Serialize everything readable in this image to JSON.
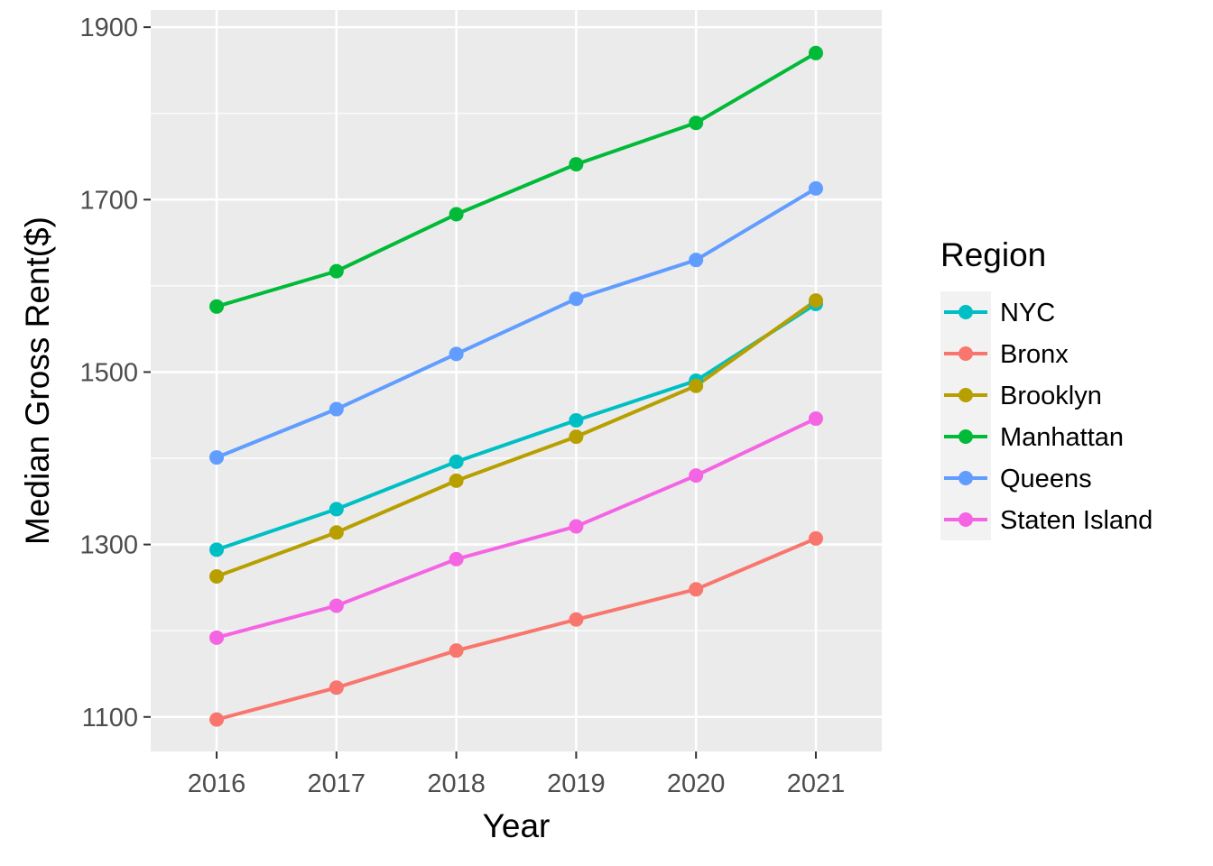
{
  "chart_data": {
    "type": "line",
    "title": "",
    "xlabel": "Year",
    "ylabel": "Median Gross Rent($)",
    "x": [
      2016,
      2017,
      2018,
      2019,
      2020,
      2021
    ],
    "x_tick_labels": [
      "2016",
      "2017",
      "2018",
      "2019",
      "2020",
      "2021"
    ],
    "y_tick_labels": [
      "1100",
      "1300",
      "1500",
      "1700",
      "1900"
    ],
    "y_ticks": [
      1100,
      1300,
      1500,
      1700,
      1900
    ],
    "ylim": [
      1060,
      1920
    ],
    "xlim": [
      2015.45,
      2021.55
    ],
    "grid": true,
    "legend": {
      "title": "Region",
      "placement": "right"
    },
    "series": [
      {
        "name": "NYC",
        "color": "#00BFC4",
        "values": [
          1294,
          1341,
          1396,
          1444,
          1490,
          1579
        ]
      },
      {
        "name": "Bronx",
        "color": "#F8766D",
        "values": [
          1097,
          1134,
          1177,
          1213,
          1248,
          1307
        ]
      },
      {
        "name": "Brooklyn",
        "color": "#B79F00",
        "values": [
          1263,
          1314,
          1374,
          1425,
          1484,
          1583
        ]
      },
      {
        "name": "Manhattan",
        "color": "#00BA38",
        "values": [
          1576,
          1617,
          1683,
          1741,
          1789,
          1870
        ]
      },
      {
        "name": "Queens",
        "color": "#619CFF",
        "values": [
          1401,
          1457,
          1521,
          1585,
          1630,
          1713
        ]
      },
      {
        "name": "Staten Island",
        "color": "#F564E3",
        "values": [
          1192,
          1229,
          1283,
          1321,
          1380,
          1446
        ]
      }
    ]
  }
}
